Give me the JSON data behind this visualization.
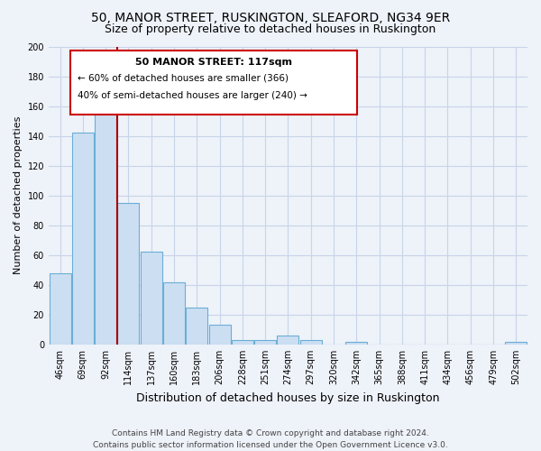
{
  "title_line1": "50, MANOR STREET, RUSKINGTON, SLEAFORD, NG34 9ER",
  "title_line2": "Size of property relative to detached houses in Ruskington",
  "xlabel": "Distribution of detached houses by size in Ruskington",
  "ylabel": "Number of detached properties",
  "bar_labels": [
    "46sqm",
    "69sqm",
    "92sqm",
    "114sqm",
    "137sqm",
    "160sqm",
    "183sqm",
    "206sqm",
    "228sqm",
    "251sqm",
    "274sqm",
    "297sqm",
    "320sqm",
    "342sqm",
    "365sqm",
    "388sqm",
    "411sqm",
    "434sqm",
    "456sqm",
    "479sqm",
    "502sqm"
  ],
  "bar_values": [
    48,
    142,
    163,
    95,
    62,
    42,
    25,
    13,
    3,
    3,
    6,
    3,
    0,
    2,
    0,
    0,
    0,
    0,
    0,
    0,
    2
  ],
  "bar_color": "#ccdff2",
  "bar_edge_color": "#6aaed6",
  "ylim": [
    0,
    200
  ],
  "yticks": [
    0,
    20,
    40,
    60,
    80,
    100,
    120,
    140,
    160,
    180,
    200
  ],
  "annotation_title": "50 MANOR STREET: 117sqm",
  "annotation_line2": "← 60% of detached houses are smaller (366)",
  "annotation_line3": "40% of semi-detached houses are larger (240) →",
  "vline_x": 2.5,
  "footer_line1": "Contains HM Land Registry data © Crown copyright and database right 2024.",
  "footer_line2": "Contains public sector information licensed under the Open Government Licence v3.0.",
  "background_color": "#eef2f9",
  "grid_color": "#c8d4e8",
  "title_fontsize": 10,
  "subtitle_fontsize": 9,
  "xlabel_fontsize": 9,
  "ylabel_fontsize": 8,
  "tick_fontsize": 7,
  "annotation_fontsize": 8,
  "footer_fontsize": 6.5
}
